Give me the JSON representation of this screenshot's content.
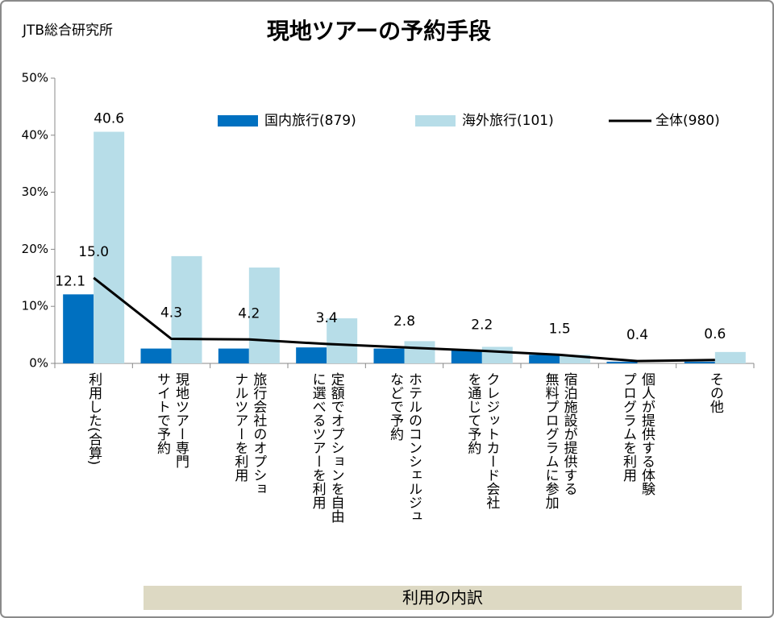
{
  "source": "JTB総合研究所",
  "chart_data": {
    "type": "bar-line",
    "title": "現地ツアーの予約手段",
    "categories": [
      [
        "利用した(合算)"
      ],
      [
        "現地ツアー専門",
        "サイトで予約"
      ],
      [
        "旅行会社のオプショ",
        "ナルツアーを利用"
      ],
      [
        "定額でオプションを自由",
        "に選べるツアーを利用"
      ],
      [
        "ホテルのコンシェルジュ",
        "などで予約"
      ],
      [
        "クレジットカード会社",
        "を通じて予約"
      ],
      [
        "宿泊施設が提供する",
        "無料プログラムに参加"
      ],
      [
        "個人が提供する体験",
        "プログラムを利用"
      ],
      [
        "その他"
      ]
    ],
    "series": [
      {
        "name": "国内旅行(879)",
        "type": "bar",
        "color": "#0070c0",
        "label_color": "#1f6fb5",
        "values": [
          12.1,
          2.6,
          2.6,
          2.8,
          2.6,
          2.3,
          1.5,
          0.3,
          0.3
        ],
        "value_labels": [
          "12.1",
          null,
          null,
          null,
          null,
          null,
          null,
          null,
          null
        ]
      },
      {
        "name": "海外旅行(101)",
        "type": "bar",
        "color": "#b7dde8",
        "label_color": "#1f6fb5",
        "values": [
          40.6,
          18.8,
          16.8,
          7.9,
          3.9,
          2.9,
          1.5,
          0,
          2.0
        ],
        "value_labels": [
          "40.6",
          null,
          null,
          null,
          null,
          null,
          null,
          null,
          null
        ]
      },
      {
        "name": "全体(980)",
        "type": "line",
        "color": "#000000",
        "label_color": "#000000",
        "values": [
          15.0,
          4.3,
          4.2,
          3.4,
          2.8,
          2.2,
          1.5,
          0.4,
          0.6
        ],
        "value_labels": [
          "15.0",
          "4.3",
          "4.2",
          "3.4",
          "2.8",
          "2.2",
          "1.5",
          "0.4",
          "0.6"
        ]
      }
    ],
    "ylim": [
      0,
      50
    ],
    "yticks": [
      {
        "value": 0,
        "label": "0%"
      },
      {
        "value": 10,
        "label": "10%"
      },
      {
        "value": 20,
        "label": "20%"
      },
      {
        "value": 30,
        "label": "30%"
      },
      {
        "value": 40,
        "label": "40%"
      },
      {
        "value": 50,
        "label": "50%"
      }
    ],
    "legend": "top",
    "group_label": "利用の内訳"
  }
}
